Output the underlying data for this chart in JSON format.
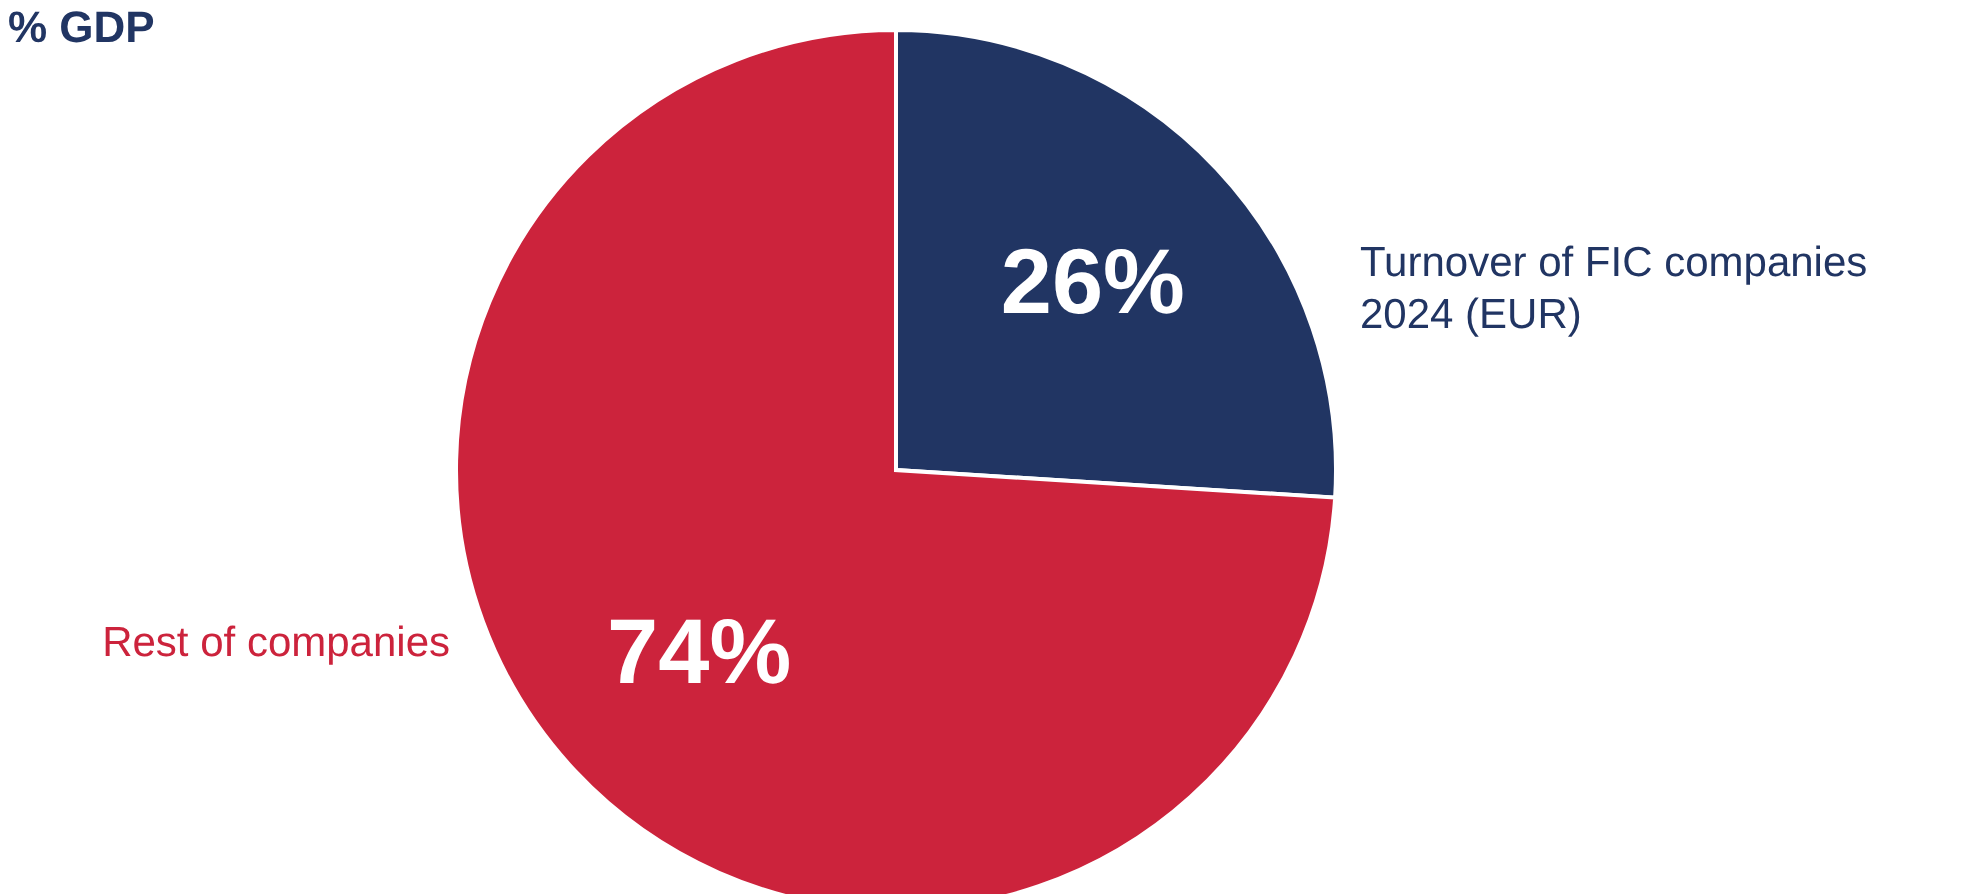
{
  "chart_data": {
    "type": "pie",
    "title": "% GDP",
    "categories": [
      "Turnover of FIC companies 2024 (EUR)",
      "Rest of companies"
    ],
    "values": [
      26,
      74
    ],
    "colors": [
      "#213563",
      "#cc233c"
    ],
    "value_labels": [
      "26%",
      "74%"
    ]
  }
}
